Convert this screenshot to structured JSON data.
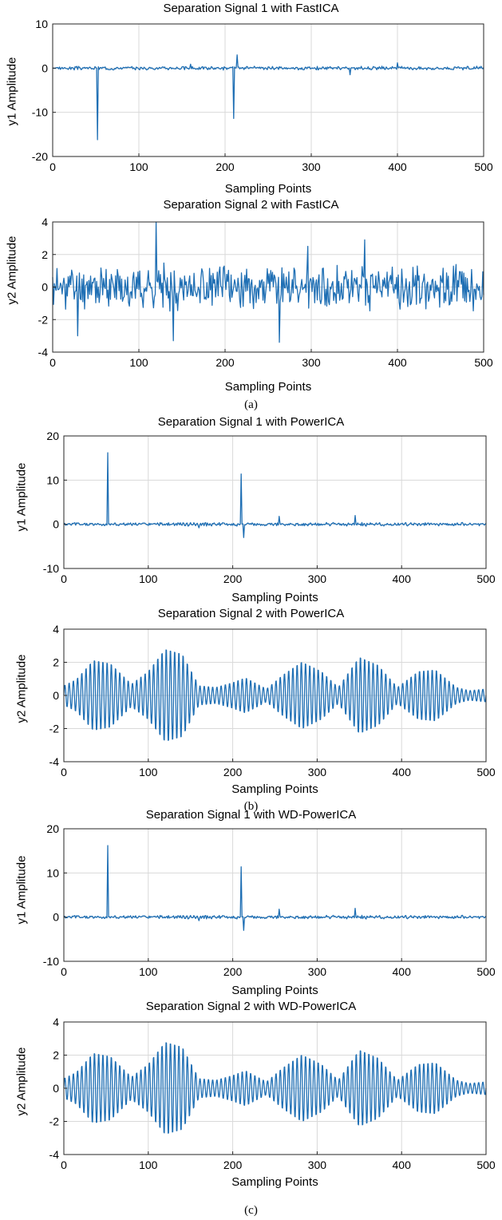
{
  "colors": {
    "line": "#1f6fb4",
    "grid": "#d9d9d9",
    "axis": "#262626"
  },
  "captions": [
    "(a)",
    "(b)",
    "(c)"
  ],
  "chart_data": [
    {
      "id": "fast1",
      "type": "line",
      "title": "Separation Signal 1 with FastICA",
      "xlabel": "Sampling Points",
      "ylabel": "y1 Amplitude",
      "xlim": [
        0,
        500
      ],
      "ylim": [
        -20,
        10
      ],
      "xticks": [
        0,
        100,
        200,
        300,
        400,
        500
      ],
      "yticks": [
        10,
        0,
        -10,
        -20
      ],
      "xtick_labels": [
        "0",
        "100",
        "200",
        "300",
        "400",
        "500"
      ],
      "ytick_labels": [
        "10",
        "0",
        "-10",
        "-20"
      ],
      "grid": true,
      "noise": 0.3,
      "seed": 3,
      "peaks": [
        [
          52,
          -16.2
        ],
        [
          210,
          -11.4
        ],
        [
          214,
          3.0
        ],
        [
          160,
          0.9
        ],
        [
          400,
          1.2
        ],
        [
          345,
          -1.5
        ]
      ]
    },
    {
      "id": "fast2",
      "type": "line",
      "title": "Separation Signal 2 with FastICA",
      "xlabel": "Sampling Points",
      "ylabel": "y2 Amplitude",
      "xlim": [
        0,
        500
      ],
      "ylim": [
        -4,
        4
      ],
      "xticks": [
        0,
        100,
        200,
        300,
        400,
        500
      ],
      "yticks": [
        4,
        2,
        0,
        -2,
        -4
      ],
      "xtick_labels": [
        "0",
        "100",
        "200",
        "300",
        "400",
        "500"
      ],
      "ytick_labels": [
        "4",
        "2",
        "0",
        "-2",
        "-4"
      ],
      "grid": true,
      "noise": 1.0,
      "seed": 11,
      "peaks": [
        [
          120,
          4.0
        ],
        [
          29,
          -3.0
        ],
        [
          263,
          -3.4
        ],
        [
          362,
          2.9
        ],
        [
          296,
          2.5
        ],
        [
          140,
          -3.3
        ]
      ]
    },
    {
      "id": "power1",
      "type": "line",
      "title": "Separation Signal 1 with PowerICA",
      "xlabel": "Sampling Points",
      "ylabel": "y1 Amplitude",
      "xlim": [
        0,
        500
      ],
      "ylim": [
        -10,
        20
      ],
      "xticks": [
        0,
        100,
        200,
        300,
        400,
        500
      ],
      "yticks": [
        20,
        10,
        0,
        -10
      ],
      "xtick_labels": [
        "0",
        "100",
        "200",
        "300",
        "400",
        "500"
      ],
      "ytick_labels": [
        "20",
        "10",
        "0",
        "-10"
      ],
      "grid": true,
      "noise": 0.3,
      "seed": 5,
      "peaks": [
        [
          52,
          16.2
        ],
        [
          210,
          11.4
        ],
        [
          213,
          -3.0
        ],
        [
          255,
          1.8
        ],
        [
          345,
          2.0
        ],
        [
          160,
          -0.8
        ]
      ]
    },
    {
      "id": "power2",
      "type": "line",
      "title": "Separation Signal 2 with PowerICA",
      "xlabel": "Sampling Points",
      "ylabel": "y2 Amplitude",
      "xlim": [
        0,
        500
      ],
      "ylim": [
        -4,
        4
      ],
      "xticks": [
        0,
        100,
        200,
        300,
        400,
        500
      ],
      "yticks": [
        4,
        2,
        0,
        -2,
        -4
      ],
      "xtick_labels": [
        "0",
        "100",
        "200",
        "300",
        "400",
        "500"
      ],
      "ytick_labels": [
        "4",
        "2",
        "0",
        "-2",
        "-4"
      ],
      "grid": true,
      "carrier_period": 5,
      "envelope": [
        [
          0,
          0.6
        ],
        [
          15,
          1.0
        ],
        [
          35,
          2.2
        ],
        [
          55,
          2.0
        ],
        [
          80,
          0.7
        ],
        [
          100,
          1.5
        ],
        [
          120,
          2.9
        ],
        [
          140,
          2.6
        ],
        [
          160,
          0.6
        ],
        [
          180,
          0.5
        ],
        [
          200,
          0.8
        ],
        [
          215,
          1.1
        ],
        [
          240,
          0.4
        ],
        [
          260,
          1.3
        ],
        [
          282,
          2.1
        ],
        [
          305,
          1.5
        ],
        [
          325,
          0.5
        ],
        [
          350,
          2.4
        ],
        [
          372,
          1.9
        ],
        [
          395,
          0.5
        ],
        [
          420,
          1.5
        ],
        [
          440,
          1.6
        ],
        [
          465,
          0.5
        ],
        [
          480,
          0.3
        ],
        [
          500,
          0.4
        ]
      ]
    },
    {
      "id": "wd1",
      "type": "line",
      "title": "Separation Signal 1 with WD-PowerICA",
      "xlabel": "Sampling Points",
      "ylabel": "y1 Amplitude",
      "xlim": [
        0,
        500
      ],
      "ylim": [
        -10,
        20
      ],
      "xticks": [
        0,
        100,
        200,
        300,
        400,
        500
      ],
      "yticks": [
        20,
        10,
        0,
        -10
      ],
      "xtick_labels": [
        "0",
        "100",
        "200",
        "300",
        "400",
        "500"
      ],
      "ytick_labels": [
        "20",
        "10",
        "0",
        "-10"
      ],
      "grid": true,
      "noise": 0.3,
      "seed": 5,
      "peaks": [
        [
          52,
          16.2
        ],
        [
          210,
          11.4
        ],
        [
          213,
          -3.0
        ],
        [
          255,
          1.8
        ],
        [
          345,
          2.0
        ],
        [
          160,
          -0.8
        ]
      ]
    },
    {
      "id": "wd2",
      "type": "line",
      "title": "Separation Signal 2 with WD-PowerICA",
      "xlabel": "Sampling Points",
      "ylabel": "y2 Amplitude",
      "xlim": [
        0,
        500
      ],
      "ylim": [
        -4,
        4
      ],
      "xticks": [
        0,
        100,
        200,
        300,
        400,
        500
      ],
      "yticks": [
        4,
        2,
        0,
        -2,
        -4
      ],
      "xtick_labels": [
        "0",
        "100",
        "200",
        "300",
        "400",
        "500"
      ],
      "ytick_labels": [
        "4",
        "2",
        "0",
        "-2",
        "-4"
      ],
      "grid": true,
      "carrier_period": 5,
      "envelope": [
        [
          0,
          0.6
        ],
        [
          15,
          1.0
        ],
        [
          35,
          2.2
        ],
        [
          55,
          2.0
        ],
        [
          80,
          0.7
        ],
        [
          100,
          1.5
        ],
        [
          120,
          2.9
        ],
        [
          140,
          2.6
        ],
        [
          160,
          0.6
        ],
        [
          180,
          0.5
        ],
        [
          200,
          0.8
        ],
        [
          215,
          1.1
        ],
        [
          240,
          0.4
        ],
        [
          260,
          1.3
        ],
        [
          282,
          2.1
        ],
        [
          305,
          1.5
        ],
        [
          325,
          0.5
        ],
        [
          350,
          2.4
        ],
        [
          372,
          1.9
        ],
        [
          395,
          0.5
        ],
        [
          420,
          1.5
        ],
        [
          440,
          1.6
        ],
        [
          465,
          0.5
        ],
        [
          480,
          0.3
        ],
        [
          500,
          0.4
        ]
      ]
    }
  ]
}
